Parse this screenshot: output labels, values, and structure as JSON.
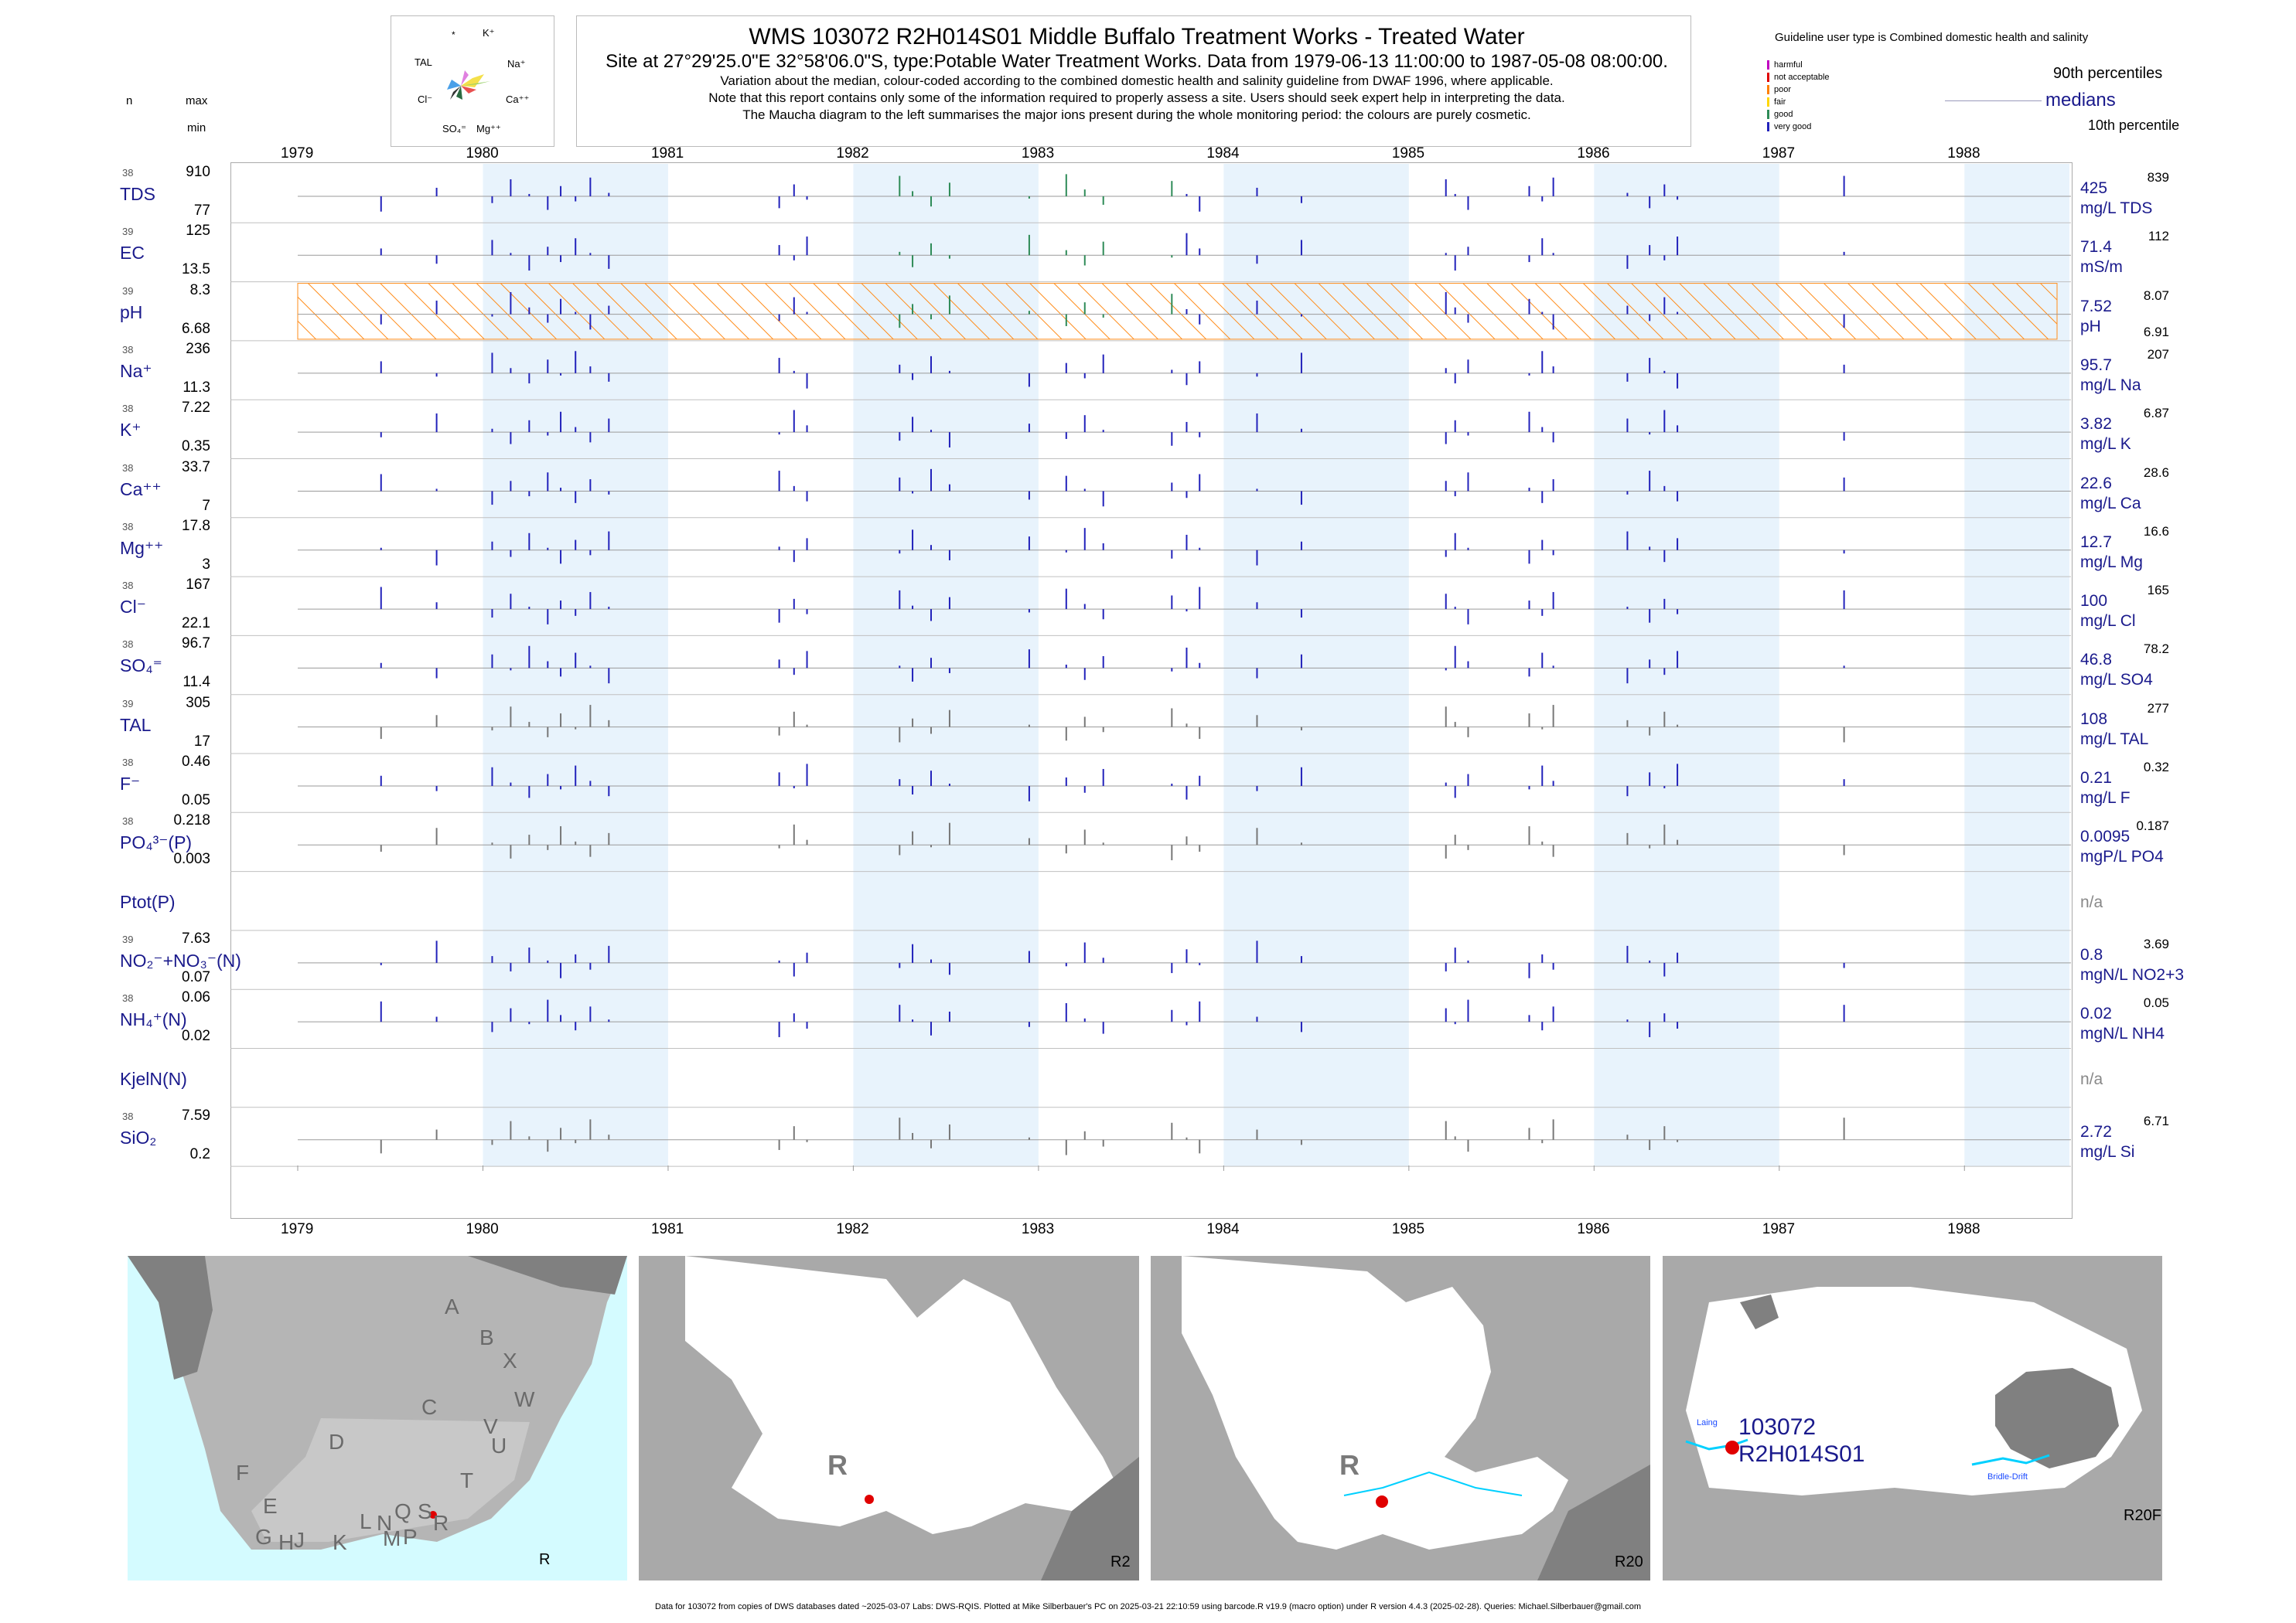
{
  "header": {
    "title": "WMS 103072 R2H014S01 Middle Buffalo Treatment Works - Treated Water",
    "subtitle": "Site at 27°29'25.0\"E 32°58'06.0\"S, type:Potable Water Treatment Works.  Data from 1979-06-13 11:00:00 to 1987-05-08 08:00:00.",
    "note1": "Variation about the median,  colour-coded according to the combined domestic health and salinity guideline from DWAF 1996, where applicable.",
    "note2": "Note that this report contains only some of the information required to properly assess a site. Users should seek expert help in interpreting the data.",
    "note3": "The Maucha diagram to the left summarises the major ions present during the whole monitoring period: the colours are purely cosmetic."
  },
  "maucha": {
    "labels": [
      "*",
      "K⁺",
      "TAL",
      "Na⁺",
      "Cl⁻",
      "Ca⁺⁺",
      "SO₄⁼",
      "Mg⁺⁺"
    ]
  },
  "guideline": {
    "title": "Guideline user type is Combined domestic health and salinity",
    "classes": [
      {
        "label": "harmful",
        "color": "#c000c0"
      },
      {
        "label": "not acceptable",
        "color": "#e00000"
      },
      {
        "label": "poor",
        "color": "#ff8000"
      },
      {
        "label": "fair",
        "color": "#ffd700"
      },
      {
        "label": "good",
        "color": "#2e8b57"
      },
      {
        "label": "very good",
        "color": "#2222bb"
      }
    ],
    "p90_label": "90th percentiles",
    "median_label": "medians",
    "p10_label": "10th percentile"
  },
  "left_header": {
    "n": "n",
    "max": "max",
    "min": "min"
  },
  "years": [
    "1979",
    "1980",
    "1981",
    "1982",
    "1983",
    "1984",
    "1985",
    "1986",
    "1987",
    "1988"
  ],
  "chart_data": {
    "type": "bar",
    "x_range": [
      "1979-01-01",
      "1988-06-30"
    ],
    "rows": [
      {
        "name": "TDS",
        "n": "38",
        "max": "910",
        "min": "77",
        "median": "425",
        "unit": "mg/L TDS",
        "p90": "839",
        "p10": ""
      },
      {
        "name": "EC",
        "n": "39",
        "max": "125",
        "min": "13.5",
        "median": "71.4",
        "unit": "mS/m",
        "p90": "112",
        "p10": ""
      },
      {
        "name": "pH",
        "n": "39",
        "max": "8.3",
        "min": "6.68",
        "median": "7.52",
        "unit": "pH",
        "p90": "8.07",
        "p10": "6.91"
      },
      {
        "name": "Na⁺",
        "n": "38",
        "max": "236",
        "min": "11.3",
        "median": "95.7",
        "unit": "mg/L Na",
        "p90": "207",
        "p10": ""
      },
      {
        "name": "K⁺",
        "n": "38",
        "max": "7.22",
        "min": "0.35",
        "median": "3.82",
        "unit": "mg/L K",
        "p90": "6.87",
        "p10": ""
      },
      {
        "name": "Ca⁺⁺",
        "n": "38",
        "max": "33.7",
        "min": "7",
        "median": "22.6",
        "unit": "mg/L Ca",
        "p90": "28.6",
        "p10": ""
      },
      {
        "name": "Mg⁺⁺",
        "n": "38",
        "max": "17.8",
        "min": "3",
        "median": "12.7",
        "unit": "mg/L Mg",
        "p90": "16.6",
        "p10": ""
      },
      {
        "name": "Cl⁻",
        "n": "38",
        "max": "167",
        "min": "22.1",
        "median": "100",
        "unit": "mg/L Cl",
        "p90": "165",
        "p10": ""
      },
      {
        "name": "SO₄⁼",
        "n": "38",
        "max": "96.7",
        "min": "11.4",
        "median": "46.8",
        "unit": "mg/L SO4",
        "p90": "78.2",
        "p10": ""
      },
      {
        "name": "TAL",
        "n": "39",
        "max": "305",
        "min": "17",
        "median": "108",
        "unit": "mg/L TAL",
        "p90": "277",
        "p10": ""
      },
      {
        "name": "F⁻",
        "n": "38",
        "max": "0.46",
        "min": "0.05",
        "median": "0.21",
        "unit": "mg/L F",
        "p90": "0.32",
        "p10": ""
      },
      {
        "name": "PO₄³⁻(P)",
        "n": "38",
        "max": "0.218",
        "min": "0.003",
        "median": "0.0095",
        "unit": "mgP/L PO4",
        "p90": "0.187",
        "p10": ""
      },
      {
        "name": "Ptot(P)",
        "n": "",
        "max": "",
        "min": "",
        "median": "n/a",
        "unit": "",
        "p90": "",
        "p10": ""
      },
      {
        "name": "NO₂⁻+NO₃⁻(N)",
        "n": "39",
        "max": "7.63",
        "min": "0.07",
        "median": "0.8",
        "unit": "mgN/L NO2+3",
        "p90": "3.69",
        "p10": ""
      },
      {
        "name": "NH₄⁺(N)",
        "n": "38",
        "max": "0.06",
        "min": "0.02",
        "median": "0.02",
        "unit": "mgN/L NH4",
        "p90": "0.05",
        "p10": ""
      },
      {
        "name": "KjelN(N)",
        "n": "",
        "max": "",
        "min": "",
        "median": "n/a",
        "unit": "",
        "p90": "",
        "p10": ""
      },
      {
        "name": "SiO₂",
        "n": "38",
        "max": "7.59",
        "min": "0.2",
        "median": "2.72",
        "unit": "mg/L Si",
        "p90": "6.71",
        "p10": ""
      }
    ],
    "sample_years": [
      1979.45,
      1979.75,
      1980.05,
      1980.15,
      1980.25,
      1980.35,
      1980.42,
      1980.5,
      1980.58,
      1980.68,
      1981.6,
      1981.68,
      1981.75,
      1982.25,
      1982.32,
      1982.42,
      1982.52,
      1982.95,
      1983.15,
      1983.25,
      1983.35,
      1983.72,
      1983.8,
      1983.87,
      1984.18,
      1984.42,
      1985.2,
      1985.25,
      1985.32,
      1985.65,
      1985.72,
      1985.78,
      1986.18,
      1986.3,
      1986.38,
      1986.45,
      1987.35
    ]
  },
  "maps": [
    {
      "code": "R",
      "letters": [
        "A",
        "B",
        "X",
        "W",
        "C",
        "V",
        "U",
        "D",
        "T",
        "F",
        "E",
        "L",
        "N",
        "Q",
        "S",
        "R",
        "G",
        "H",
        "J",
        "K",
        "M",
        "P"
      ]
    },
    {
      "code": "R2",
      "letters": [
        "R"
      ]
    },
    {
      "code": "R20",
      "letters": [
        "R"
      ]
    },
    {
      "code": "R20F",
      "site_code": "103072",
      "site_name": "R2H014S01",
      "places": [
        "Laing",
        "Bridle-Drift"
      ]
    }
  ],
  "footer": "Data for 103072 from copies of DWS databases dated ~2025-03-07 Labs: DWS-RQIS. Plotted at Mike Silberbauer's PC on 2025-03-21 22:10:59 using barcode.R v19.9 (macro option) under R version 4.4.3 (2025-02-28). Queries: Michael.Silberbauer@gmail.com"
}
